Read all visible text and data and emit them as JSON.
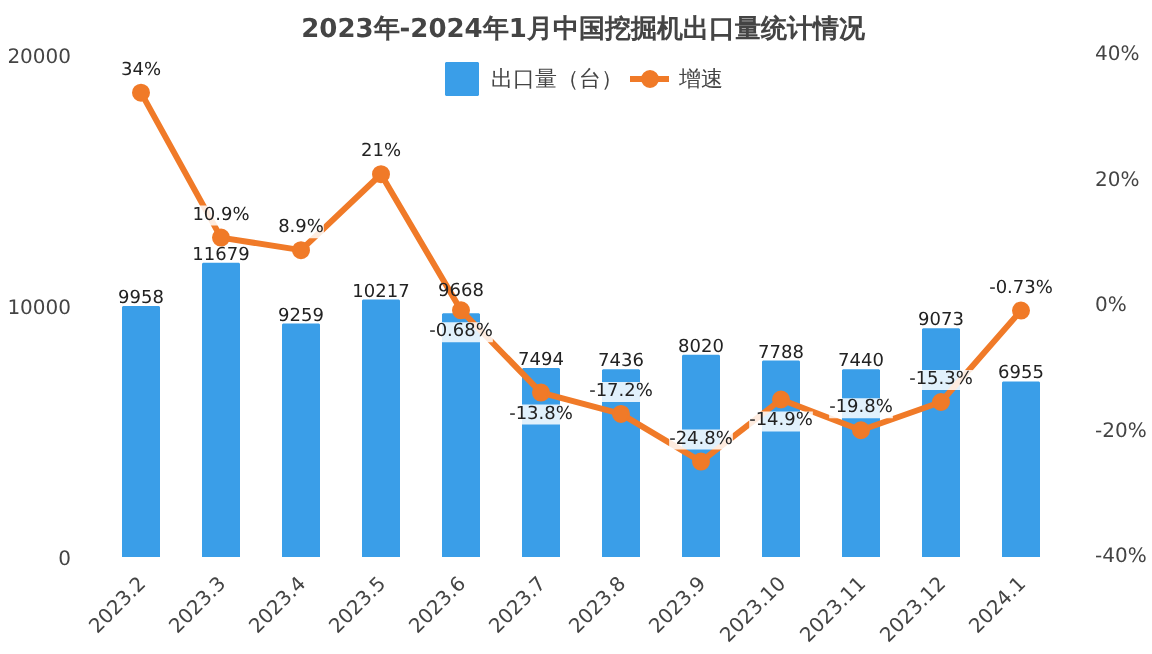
{
  "chart_data": {
    "type": "bar",
    "title": "2023年-2024年1月中国挖掘机出口量统计情况",
    "categories": [
      "2023.2",
      "2023.3",
      "2023.4",
      "2023.5",
      "2023.6",
      "2023.7",
      "2023.8",
      "2023.9",
      "2023.10",
      "2023.11",
      "2023.12",
      "2024.1"
    ],
    "series": [
      {
        "name": "出口量（台）",
        "color": "#3a9ee8",
        "values": [
          9958,
          11679,
          9259,
          10217,
          9668,
          7494,
          7436,
          8020,
          7788,
          7440,
          9073,
          6955
        ],
        "value_labels": [
          "9958",
          "11679",
          "9259",
          "10217",
          "9668",
          "7494",
          "7436",
          "8020",
          "7788",
          "7440",
          "9073",
          "6955"
        ]
      },
      {
        "name": "增速",
        "type": "line",
        "axis": "y2",
        "color": "#f07a28",
        "values": [
          34,
          10.9,
          8.9,
          21,
          -0.68,
          -13.8,
          -17.2,
          -24.8,
          -14.9,
          -19.8,
          -15.3,
          -0.73
        ],
        "value_labels": [
          "34%",
          "10.9%",
          "8.9%",
          "21%",
          "-0.68%",
          "-13.8%",
          "-17.2%",
          "-24.8%",
          "-14.9%",
          "-19.8%",
          "-15.3%",
          "-0.73%"
        ]
      }
    ],
    "ylim": [
      0,
      20000
    ],
    "yticks": [
      0,
      10000,
      20000
    ],
    "y2lim": [
      -40,
      40
    ],
    "y2ticks": [
      {
        "value": -40,
        "label": "-40%"
      },
      {
        "value": -20,
        "label": "-20%"
      },
      {
        "value": 0,
        "label": "0%"
      },
      {
        "value": 20,
        "label": "20%"
      },
      {
        "value": 40,
        "label": "40%"
      }
    ],
    "legend": "top",
    "marker": "circle",
    "line_style": "solid"
  }
}
